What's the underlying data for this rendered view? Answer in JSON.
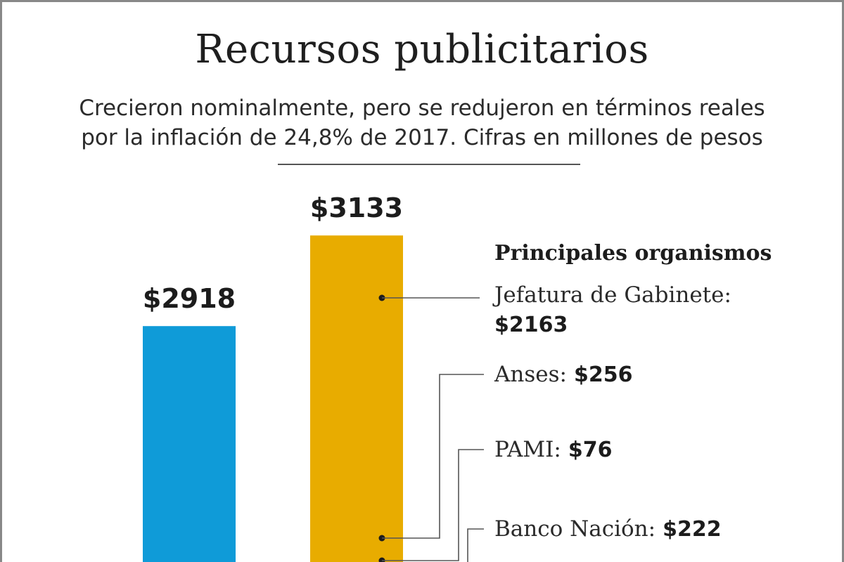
{
  "chart_data": {
    "type": "bar",
    "title": "Recursos publicitarios",
    "subtitle_line1": "Crecieron nominalmente, pero se redujeron en términos reales",
    "subtitle_line2": "por la inflación de 24,8% de 2017. Cifras en millones de pesos",
    "values": [
      2918,
      3133
    ],
    "value_labels": [
      "$2918",
      "$3133"
    ],
    "colors": [
      "#0f9bd8",
      "#e8ac00"
    ],
    "ylim": [
      0,
      4500
    ],
    "breakdown_title": "Principales organismos",
    "breakdown": [
      {
        "name": "Jefatura de Gabinete:",
        "label": "$2163",
        "value": 2163
      },
      {
        "name": "Anses:",
        "label": "$256",
        "value": 256
      },
      {
        "name": "PAMI:",
        "label": "$76",
        "value": 76
      },
      {
        "name": "Banco Nación:",
        "label": "$222",
        "value": 222
      }
    ]
  }
}
